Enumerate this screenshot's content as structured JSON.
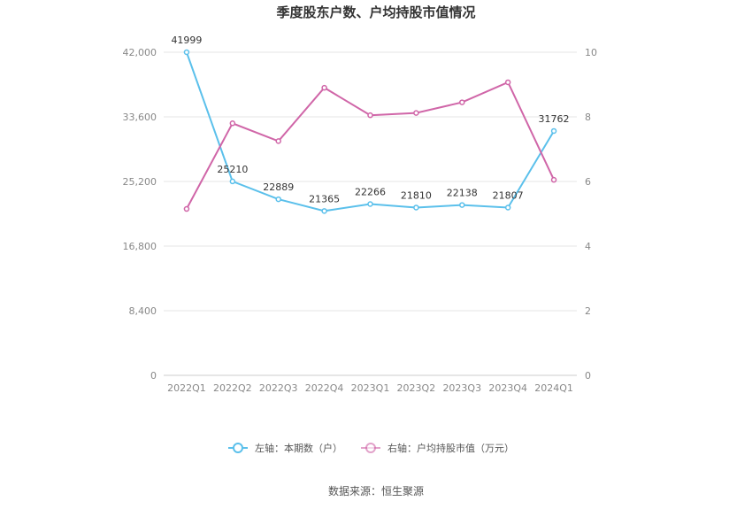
{
  "chart_data": {
    "type": "line",
    "title": "季度股东户数、户均持股市值情况",
    "categories": [
      "2022Q1",
      "2022Q2",
      "2022Q3",
      "2022Q4",
      "2023Q1",
      "2023Q2",
      "2023Q3",
      "2023Q4",
      "2024Q1"
    ],
    "left_axis": {
      "ylim": [
        0,
        42000
      ],
      "ticks": [
        "0",
        "8,400",
        "16,800",
        "25,200",
        "33,600",
        "42,000"
      ]
    },
    "right_axis": {
      "ylim": [
        0,
        10
      ],
      "ticks": [
        "0",
        "2",
        "4",
        "6",
        "8",
        "10"
      ]
    },
    "series": [
      {
        "name": "左轴：本期数（户）",
        "axis": "left",
        "color": "#5bc0eb",
        "values": [
          41999,
          25210,
          22889,
          21365,
          22266,
          21810,
          22138,
          21807,
          31762
        ],
        "labels": [
          "41999",
          "25210",
          "22889",
          "21365",
          "22266",
          "21810",
          "22138",
          "21807",
          "31762"
        ]
      },
      {
        "name": "右轴：户均持股市值（万元）",
        "axis": "right",
        "color": "#d066a8",
        "values": [
          5.15,
          7.8,
          7.25,
          8.9,
          8.05,
          8.12,
          8.45,
          9.07,
          6.05
        ]
      }
    ],
    "grid": true,
    "legend": "bottom"
  },
  "source": "数据来源：恒生聚源"
}
